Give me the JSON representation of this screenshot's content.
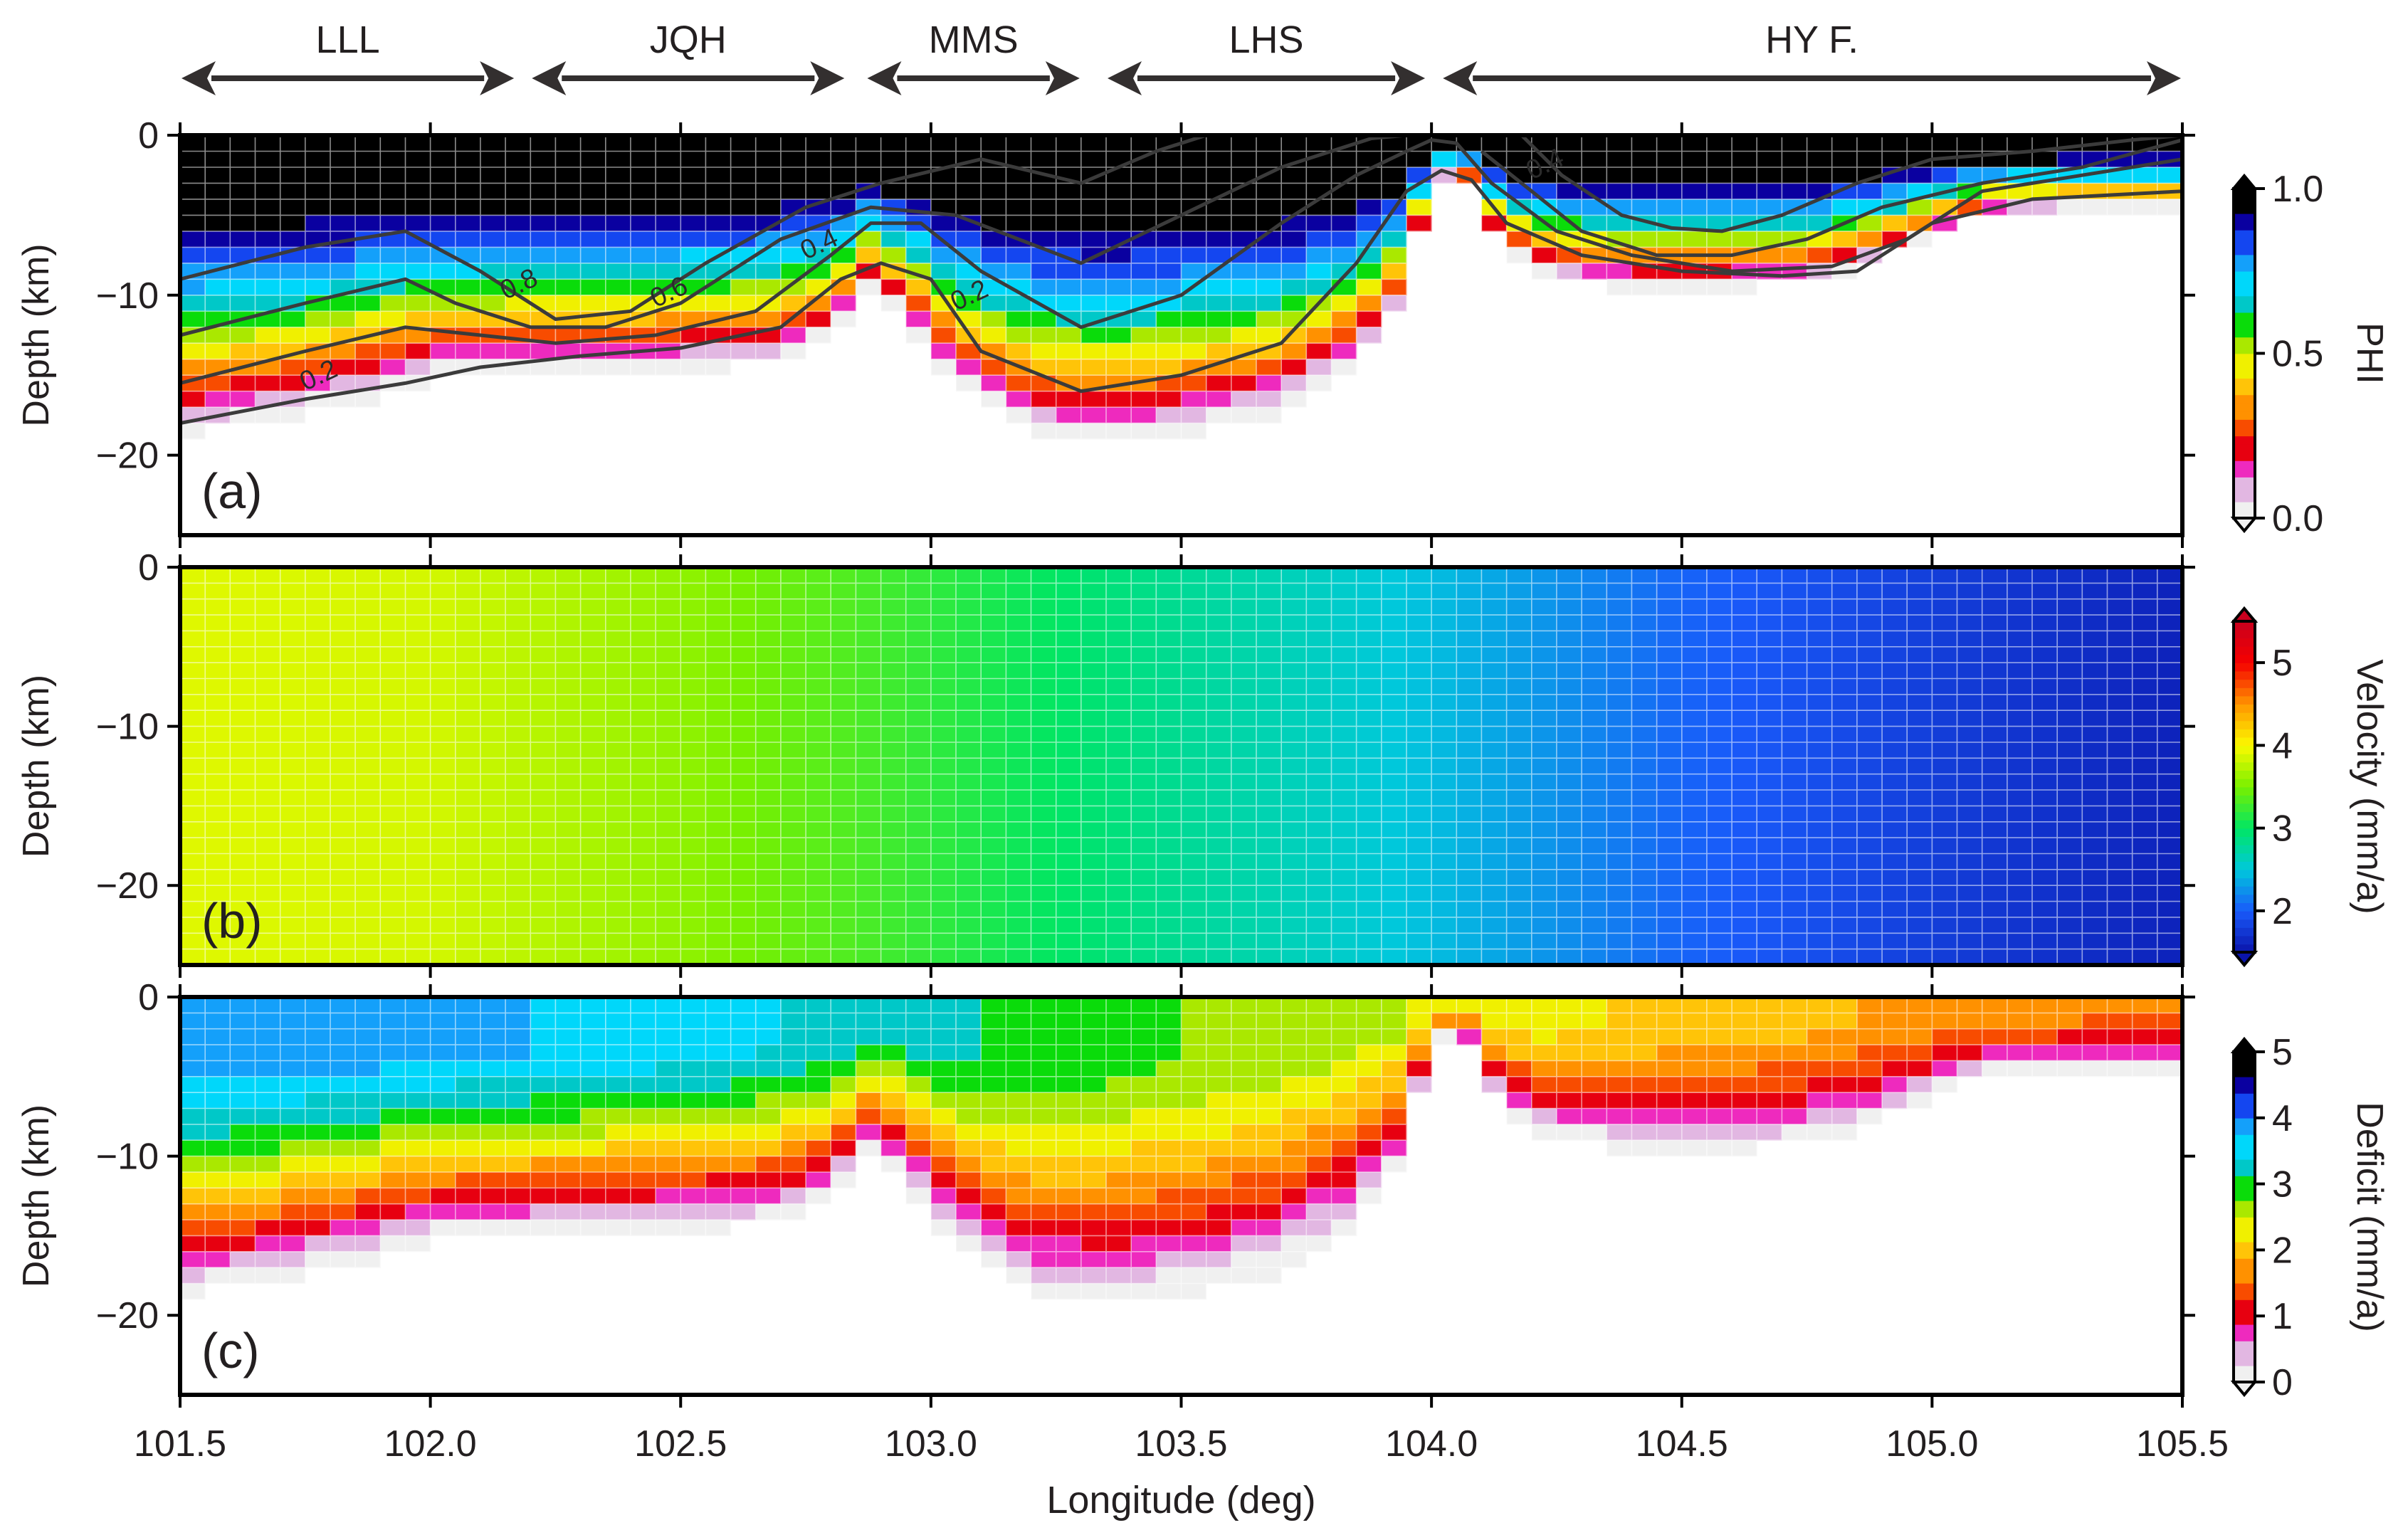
{
  "fault_labels": [
    "LLL",
    "JQH",
    "MMS",
    "LHS",
    "HY F."
  ],
  "fault_extents": [
    [
      101.5,
      102.17
    ],
    [
      102.2,
      102.83
    ],
    [
      102.87,
      103.3
    ],
    [
      103.35,
      103.99
    ],
    [
      104.02,
      105.5
    ]
  ],
  "x_axis": {
    "label": "Longitude (deg)",
    "min": 101.5,
    "max": 105.5,
    "ticks": [
      101.5,
      102.0,
      102.5,
      103.0,
      103.5,
      104.0,
      104.5,
      105.0,
      105.5
    ],
    "tick_labels": [
      "101.5",
      "102.0",
      "102.5",
      "103.0",
      "103.5",
      "104.0",
      "104.5",
      "105.0",
      "105.5"
    ]
  },
  "chart_data": [
    {
      "type": "heatmap",
      "panel_label": "(a)",
      "ylabel": "Depth (km)",
      "ylim": [
        -25,
        0
      ],
      "yticks": [
        0,
        -10,
        -20
      ],
      "ytick_labels": [
        "0",
        "−10",
        "−20"
      ],
      "colorbar": {
        "label": "PHI",
        "min": 0,
        "max": 1,
        "ticks": [
          0,
          0.5,
          1
        ],
        "tick_labels": [
          "0.0",
          "0.5",
          "1.0"
        ]
      },
      "contour_levels": [
        0.2,
        0.4,
        0.6,
        0.8
      ],
      "contour_labels": [
        "0.2",
        "0.4",
        "0.6",
        "0.8"
      ],
      "locking_depth_profile_km": {
        "x": [
          101.5,
          101.7,
          101.9,
          102.0,
          102.2,
          102.35,
          102.5,
          102.7,
          102.8,
          102.88,
          102.95,
          103.05,
          103.2,
          103.35,
          103.5,
          103.7,
          103.85,
          103.95,
          104.0,
          104.08,
          104.12,
          104.2,
          104.4,
          104.6,
          104.8,
          104.95,
          105.1,
          105.3,
          105.5
        ],
        "y": [
          -18.5,
          -17.5,
          -16,
          -15,
          -14.8,
          -14.8,
          -14.5,
          -14,
          -12.5,
          -9.5,
          -11.5,
          -15.5,
          -18.5,
          -19,
          -18.5,
          -17,
          -14,
          -10,
          -2.5,
          -3,
          -6,
          -8.5,
          -9.5,
          -9.5,
          -9,
          -7,
          -5,
          -4.5,
          -4.5
        ]
      },
      "contour_lines": [
        {
          "level": 0.8,
          "x": [
            101.5,
            101.75,
            101.95,
            102.1,
            102.25,
            102.4,
            102.55,
            102.75,
            102.9,
            103.1,
            103.3,
            103.45,
            103.55,
            103.6
          ],
          "y": [
            -9,
            -7,
            -6,
            -8.5,
            -11.5,
            -11,
            -8,
            -4.5,
            -3,
            -1.5,
            -3,
            -1,
            0,
            0
          ]
        },
        {
          "level": 0.8,
          "x": [
            104.18,
            104.26,
            104.38,
            104.48,
            104.58,
            104.7,
            104.85,
            105.0,
            105.2,
            105.4,
            105.5
          ],
          "y": [
            0,
            -2.5,
            -5,
            -5.8,
            -6,
            -5,
            -3,
            -1.5,
            -1,
            -0.3,
            0
          ]
        },
        {
          "level": 0.6,
          "x": [
            101.5,
            101.75,
            101.95,
            102.05,
            102.2,
            102.35,
            102.5,
            102.7,
            102.88,
            103.05,
            103.3,
            103.5,
            103.7,
            103.88,
            103.95
          ],
          "y": [
            -12.5,
            -10.5,
            -9,
            -10.5,
            -12,
            -12,
            -10.5,
            -6.5,
            -4.5,
            -5,
            -8,
            -5,
            -2,
            -0.2,
            0
          ]
        },
        {
          "level": 0.6,
          "x": [
            104.1,
            104.18,
            104.3,
            104.45,
            104.6,
            104.75,
            104.9,
            105.1,
            105.3,
            105.5
          ],
          "y": [
            -1,
            -3,
            -6,
            -7.5,
            -7.5,
            -6.5,
            -4.5,
            -3,
            -2,
            -0.3
          ]
        },
        {
          "level": 0.4,
          "x": [
            101.5,
            101.75,
            101.95,
            102.1,
            102.25,
            102.45,
            102.65,
            102.8,
            102.88,
            102.98,
            103.1,
            103.3,
            103.5,
            103.7,
            103.85,
            103.95,
            104.0,
            104.05,
            104.12,
            104.25,
            104.4,
            104.6,
            104.8,
            104.95,
            105.1,
            105.3,
            105.5
          ],
          "y": [
            -15.5,
            -13.5,
            -12,
            -12.5,
            -13,
            -12.5,
            -11,
            -7.5,
            -5.5,
            -5.5,
            -8.5,
            -12,
            -10,
            -5.5,
            -2.5,
            -1,
            -0.3,
            -0.5,
            -3,
            -6,
            -7.5,
            -8.5,
            -8.2,
            -6.5,
            -3.5,
            -2.5,
            -1.5
          ]
        },
        {
          "level": 0.2,
          "x": [
            101.5,
            101.75,
            101.95,
            102.1,
            102.3,
            102.5,
            102.7,
            102.82,
            102.9,
            103.0,
            103.1,
            103.3,
            103.5,
            103.7,
            103.85,
            103.95,
            104.02,
            104.08,
            104.15,
            104.3,
            104.5,
            104.7,
            104.85,
            105.0,
            105.2,
            105.5
          ],
          "y": [
            -18,
            -16.5,
            -15.5,
            -14.5,
            -13.8,
            -13.3,
            -12,
            -9,
            -8,
            -9,
            -13.5,
            -16,
            -15,
            -13,
            -8,
            -3.5,
            -2.2,
            -2.8,
            -5.5,
            -7.5,
            -8.5,
            -8.8,
            -8.5,
            -5.5,
            -4,
            -3.5
          ]
        }
      ]
    },
    {
      "type": "heatmap",
      "panel_label": "(b)",
      "ylabel": "Depth (km)",
      "ylim": [
        -25,
        0
      ],
      "yticks": [
        0,
        -10,
        -20
      ],
      "ytick_labels": [
        "0",
        "−10",
        "−20"
      ],
      "colorbar": {
        "label": "Velocity (mm/a)",
        "min": 1.5,
        "max": 5.5,
        "ticks": [
          2,
          3,
          4,
          5
        ],
        "tick_labels": [
          "2",
          "3",
          "4",
          "5"
        ]
      },
      "velocity_profile": {
        "x": [
          101.5,
          102.0,
          102.5,
          103.0,
          103.5,
          104.0,
          104.5,
          105.0,
          105.5
        ],
        "values": [
          3.9,
          3.85,
          3.6,
          3.2,
          2.8,
          2.45,
          2.05,
          1.8,
          1.6
        ]
      }
    },
    {
      "type": "heatmap",
      "panel_label": "(c)",
      "ylabel": "Depth (km)",
      "ylim": [
        -25,
        0
      ],
      "yticks": [
        0,
        -10,
        -20
      ],
      "ytick_labels": [
        "0",
        "−10",
        "−20"
      ],
      "colorbar": {
        "label": "Deficit (mm/a)",
        "min": 0,
        "max": 5,
        "ticks": [
          0,
          1,
          2,
          3,
          4,
          5
        ],
        "tick_labels": [
          "0",
          "1",
          "2",
          "3",
          "4",
          "5"
        ]
      }
    }
  ]
}
